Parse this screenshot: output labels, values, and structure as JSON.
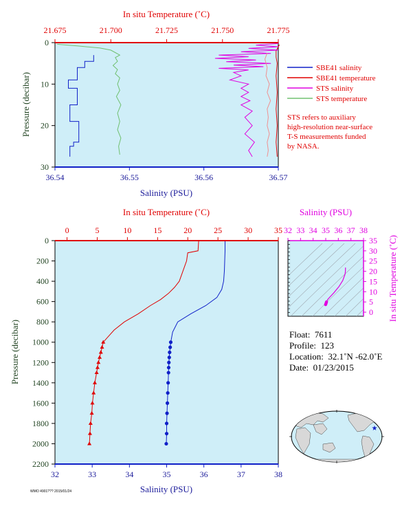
{
  "colors": {
    "plot_bg": "#cfeef8",
    "red": "#e00000",
    "blue": "#1020c8",
    "magenta": "#e000e0",
    "green": "#70c070",
    "salmon": "#f09090",
    "axis_text_blue": "#1a1a9a",
    "axis_text_dark": "#224422"
  },
  "footer_id": "WMO 4901???  2015/01/24",
  "top_panel": {
    "top_axis_label": "In situ Temperature (˚C)",
    "bottom_axis_label": "Salinity (PSU)",
    "left_axis_label": "Pressure (decibar)",
    "legend": [
      {
        "label": "SBE41 salinity",
        "color": "#1020c8"
      },
      {
        "label": "SBE41 temperature",
        "color": "#e00000"
      },
      {
        "label": "STS salinity",
        "color": "#e000e0"
      },
      {
        "label": "STS temperature",
        "color": "#70c070"
      }
    ],
    "note_lines": [
      "STS refers to auxiliary",
      "high-resolution near-surface",
      "T-S measurements funded",
      "by NASA."
    ]
  },
  "main_panel": {
    "top_axis_label": "In situ Temperature (˚C)",
    "bottom_axis_label": "Salinity (PSU)",
    "left_axis_label": "Pressure (decibar)"
  },
  "ts_panel": {
    "top_axis_label": "Salinity (PSU)",
    "right_axis_label": "In situ Temperature (˚C)"
  },
  "info": {
    "float_label": "Float:",
    "float_value": "7611",
    "profile_label": "Profile:",
    "profile_value": "123",
    "location_label": "Location:",
    "location_value": "32.1˚N  -62.0˚E",
    "date_label": "Date:",
    "date_value": "01/23/2015"
  },
  "chart_data": [
    {
      "type": "line",
      "panel": "near-surface",
      "title": "",
      "ylabel": "Pressure (decibar)",
      "y_range": [
        0,
        30
      ],
      "y_inverted": true,
      "y_ticks": [
        0,
        10,
        20,
        30
      ],
      "x_bottom": {
        "label": "Salinity (PSU)",
        "range": [
          36.54,
          36.57
        ],
        "ticks": [
          "36.54",
          "36.55",
          "36.56",
          "36.57"
        ]
      },
      "x_top": {
        "label": "In situ Temperature (˚C)",
        "range": [
          21.675,
          21.775
        ],
        "ticks": [
          "21.675",
          "21.700",
          "21.725",
          "21.750",
          "21.775"
        ]
      },
      "series": [
        {
          "name": "SBE41 salinity",
          "axis": "salinity",
          "color": "#1020c8",
          "points": [
            [
              36.5452,
              3.0
            ],
            [
              36.5452,
              4.5
            ],
            [
              36.544,
              4.5
            ],
            [
              36.544,
              6.0
            ],
            [
              36.543,
              6.0
            ],
            [
              36.543,
              9.0
            ],
            [
              36.5418,
              9.0
            ],
            [
              36.5418,
              11.0
            ],
            [
              36.543,
              11.0
            ],
            [
              36.543,
              15.0
            ],
            [
              36.542,
              15.0
            ],
            [
              36.542,
              19.0
            ],
            [
              36.5432,
              19.0
            ],
            [
              36.5432,
              24.0
            ],
            [
              36.5425,
              24.0
            ],
            [
              36.5425,
              25.0
            ],
            [
              36.542,
              25.0
            ],
            [
              36.542,
              27.5
            ]
          ]
        },
        {
          "name": "SBE41 temperature",
          "axis": "temperature",
          "color": "#e00000",
          "points": [
            [
              21.7755,
              0.5
            ],
            [
              21.774,
              2.0
            ],
            [
              21.774,
              3.5
            ],
            [
              21.7745,
              5.0
            ],
            [
              21.774,
              8.0
            ],
            [
              21.7745,
              12.0
            ],
            [
              21.774,
              16.0
            ],
            [
              21.7745,
              20.0
            ],
            [
              21.774,
              24.0
            ],
            [
              21.7745,
              27.5
            ]
          ]
        },
        {
          "name": "STS salinity",
          "axis": "salinity",
          "color": "#e000e0",
          "points": [
            [
              36.57,
              0.2
            ],
            [
              36.567,
              0.6
            ],
            [
              36.57,
              1.0
            ],
            [
              36.566,
              1.4
            ],
            [
              36.57,
              1.8
            ],
            [
              36.565,
              2.2
            ],
            [
              36.569,
              2.6
            ],
            [
              36.562,
              3.0
            ],
            [
              36.566,
              3.4
            ],
            [
              36.5615,
              3.8
            ],
            [
              36.567,
              4.2
            ],
            [
              36.563,
              4.6
            ],
            [
              36.569,
              5.0
            ],
            [
              36.564,
              5.4
            ],
            [
              36.568,
              5.8
            ],
            [
              36.562,
              6.2
            ],
            [
              36.566,
              6.6
            ],
            [
              36.564,
              7.2
            ],
            [
              36.565,
              8.0
            ],
            [
              36.5635,
              9.0
            ],
            [
              36.566,
              10.0
            ],
            [
              36.565,
              11.0
            ],
            [
              36.566,
              12.0
            ],
            [
              36.565,
              13.0
            ],
            [
              36.5662,
              14.0
            ],
            [
              36.565,
              15.0
            ],
            [
              36.5665,
              16.5
            ],
            [
              36.5655,
              18.0
            ],
            [
              36.5665,
              20.0
            ],
            [
              36.5655,
              22.0
            ],
            [
              36.5668,
              24.0
            ],
            [
              36.566,
              26.0
            ],
            [
              36.5665,
              27.5
            ]
          ]
        },
        {
          "name": "STS temperature",
          "axis": "temperature",
          "color": "#70c070",
          "points": [
            [
              21.676,
              0.4
            ],
            [
              21.685,
              0.8
            ],
            [
              21.695,
              1.3
            ],
            [
              21.7,
              1.8
            ],
            [
              21.702,
              2.4
            ],
            [
              21.704,
              3.0
            ],
            [
              21.702,
              3.6
            ],
            [
              21.703,
              4.5
            ],
            [
              21.701,
              5.5
            ],
            [
              21.703,
              6.5
            ],
            [
              21.702,
              7.5
            ],
            [
              21.704,
              8.5
            ],
            [
              21.703,
              10.0
            ],
            [
              21.704,
              11.5
            ],
            [
              21.7025,
              13.0
            ],
            [
              21.7045,
              15.0
            ],
            [
              21.703,
              17.0
            ],
            [
              21.704,
              19.0
            ],
            [
              21.703,
              21.0
            ],
            [
              21.7045,
              23.0
            ],
            [
              21.7035,
              25.0
            ],
            [
              21.704,
              27.0
            ]
          ]
        },
        {
          "name": "",
          "axis": "temperature",
          "color": "#f09090",
          "points": [
            [
              21.77,
              2.5
            ],
            [
              21.769,
              4.0
            ],
            [
              21.77,
              6.0
            ],
            [
              21.7695,
              8.0
            ],
            [
              21.771,
              10.0
            ],
            [
              21.77,
              12.0
            ],
            [
              21.7715,
              14.0
            ],
            [
              21.77,
              16.0
            ],
            [
              21.7705,
              18.0
            ],
            [
              21.77,
              20.0
            ],
            [
              21.771,
              22.0
            ],
            [
              21.77,
              24.0
            ],
            [
              21.7705,
              26.0
            ],
            [
              21.77,
              27.5
            ]
          ]
        }
      ],
      "legend_placement": "right"
    },
    {
      "type": "line",
      "panel": "full-profile",
      "title": "",
      "ylabel": "Pressure (decibar)",
      "y_range": [
        0,
        2200
      ],
      "y_inverted": true,
      "y_ticks": [
        0,
        200,
        400,
        600,
        800,
        1000,
        1200,
        1400,
        1600,
        1800,
        2000,
        2200
      ],
      "x_bottom": {
        "label": "Salinity (PSU)",
        "range": [
          32,
          38
        ],
        "ticks": [
          "32",
          "33",
          "34",
          "35",
          "36",
          "37",
          "38"
        ]
      },
      "x_top": {
        "label": "In situ Temperature (˚C)",
        "range": [
          -2,
          35
        ],
        "ticks": [
          "0",
          "5",
          "10",
          "15",
          "20",
          "25",
          "30",
          "35"
        ]
      },
      "series": [
        {
          "name": "temperature",
          "axis": "temperature",
          "color": "#e00000",
          "points": [
            [
              21.8,
              0
            ],
            [
              21.7,
              100
            ],
            [
              20.0,
              120
            ],
            [
              19.8,
              200
            ],
            [
              19.2,
              300
            ],
            [
              18.6,
              400
            ],
            [
              17.8,
              460
            ],
            [
              16.8,
              520
            ],
            [
              15.5,
              580
            ],
            [
              13.8,
              640
            ],
            [
              11.8,
              720
            ],
            [
              9.5,
              800
            ],
            [
              7.8,
              880
            ],
            [
              6.6,
              960
            ],
            [
              6.0,
              1000
            ],
            [
              5.6,
              1100
            ],
            [
              5.2,
              1200
            ],
            [
              4.9,
              1300
            ],
            [
              4.6,
              1400
            ],
            [
              4.4,
              1500
            ],
            [
              4.2,
              1600
            ],
            [
              4.1,
              1700
            ],
            [
              3.9,
              1800
            ],
            [
              3.8,
              1900
            ],
            [
              3.7,
              2000
            ]
          ],
          "markers": [
            1000,
            1050,
            1100,
            1150,
            1200,
            1250,
            1300,
            1400,
            1500,
            1600,
            1700,
            1800,
            1900,
            2000
          ]
        },
        {
          "name": "salinity",
          "axis": "salinity",
          "color": "#1020c8",
          "points": [
            [
              36.57,
              0
            ],
            [
              36.57,
              100
            ],
            [
              36.56,
              200
            ],
            [
              36.55,
              300
            ],
            [
              36.53,
              400
            ],
            [
              36.48,
              480
            ],
            [
              36.35,
              560
            ],
            [
              36.05,
              640
            ],
            [
              35.65,
              720
            ],
            [
              35.3,
              800
            ],
            [
              35.16,
              900
            ],
            [
              35.11,
              1000
            ],
            [
              35.08,
              1100
            ],
            [
              35.06,
              1200
            ],
            [
              35.05,
              1300
            ],
            [
              35.04,
              1400
            ],
            [
              35.03,
              1500
            ],
            [
              35.02,
              1600
            ],
            [
              35.01,
              1700
            ],
            [
              35.0,
              1800
            ],
            [
              35.0,
              1900
            ],
            [
              34.99,
              2000
            ]
          ],
          "markers": [
            1000,
            1050,
            1100,
            1150,
            1200,
            1250,
            1300,
            1400,
            1500,
            1600,
            1700,
            1800,
            1900,
            2000
          ]
        }
      ]
    },
    {
      "type": "scatter",
      "panel": "T-S diagram",
      "x": {
        "label": "Salinity (PSU)",
        "range": [
          32,
          38
        ],
        "ticks": [
          "32",
          "33",
          "34",
          "35",
          "36",
          "37",
          "38"
        ]
      },
      "y": {
        "label": "In situ Temperature (˚C)",
        "range": [
          -2,
          35
        ],
        "ticks": [
          "0",
          "5",
          "10",
          "15",
          "20",
          "25",
          "30",
          "35"
        ]
      },
      "series": [
        {
          "name": "",
          "color": "#e000e0",
          "points": [
            [
              36.57,
              21.8
            ],
            [
              36.56,
              19.8
            ],
            [
              36.53,
              18.6
            ],
            [
              36.35,
              15.5
            ],
            [
              36.05,
              12.5
            ],
            [
              35.65,
              9.5
            ],
            [
              35.3,
              7.2
            ],
            [
              35.16,
              6.2
            ],
            [
              35.1,
              5.5
            ],
            [
              35.06,
              5.0
            ],
            [
              35.04,
              4.6
            ],
            [
              35.02,
              4.2
            ],
            [
              35.0,
              3.9
            ],
            [
              34.99,
              3.7
            ]
          ]
        }
      ]
    }
  ]
}
